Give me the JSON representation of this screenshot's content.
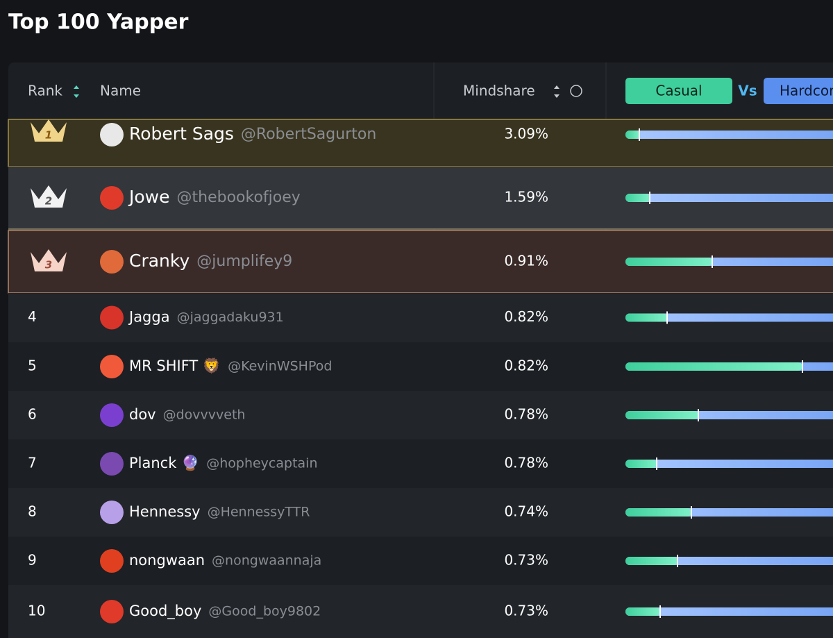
{
  "title": "Top 100 Yapper",
  "header": {
    "rank": "Rank",
    "name": "Name",
    "mindshare": "Mindshare",
    "casual": "Casual",
    "vs": "Vs",
    "hardcore": "Hardcore"
  },
  "rows": [
    {
      "rank": 1,
      "name": "Robert Sags",
      "handle": "@RobertSagurton",
      "mindshare": "3.09%",
      "casual_share": 4
    },
    {
      "rank": 2,
      "name": "Jowe",
      "handle": "@thebookofjoey",
      "mindshare": "1.59%",
      "casual_share": 7
    },
    {
      "rank": 3,
      "name": "Cranky",
      "handle": "@jumplifey9",
      "mindshare": "0.91%",
      "casual_share": 25
    },
    {
      "rank": 4,
      "name": "Jagga",
      "handle": "@jaggadaku931",
      "mindshare": "0.82%",
      "casual_share": 12
    },
    {
      "rank": 5,
      "name": "MR SHIFT 🦁",
      "handle": "@KevinWSHPod",
      "mindshare": "0.82%",
      "casual_share": 51
    },
    {
      "rank": 6,
      "name": "dov",
      "handle": "@dovvvveth",
      "mindshare": "0.78%",
      "casual_share": 21
    },
    {
      "rank": 7,
      "name": "Planck 🔮",
      "handle": "@hopheycaptain",
      "mindshare": "0.78%",
      "casual_share": 9
    },
    {
      "rank": 8,
      "name": "Hennessy",
      "handle": "@HennessyTTR",
      "mindshare": "0.74%",
      "casual_share": 19
    },
    {
      "rank": 9,
      "name": "nongwaan",
      "handle": "@nongwaannaja",
      "mindshare": "0.73%",
      "casual_share": 15
    },
    {
      "rank": 10,
      "name": "Good_boy",
      "handle": "@Good_boy9802",
      "mindshare": "0.73%",
      "casual_share": 10
    }
  ]
}
